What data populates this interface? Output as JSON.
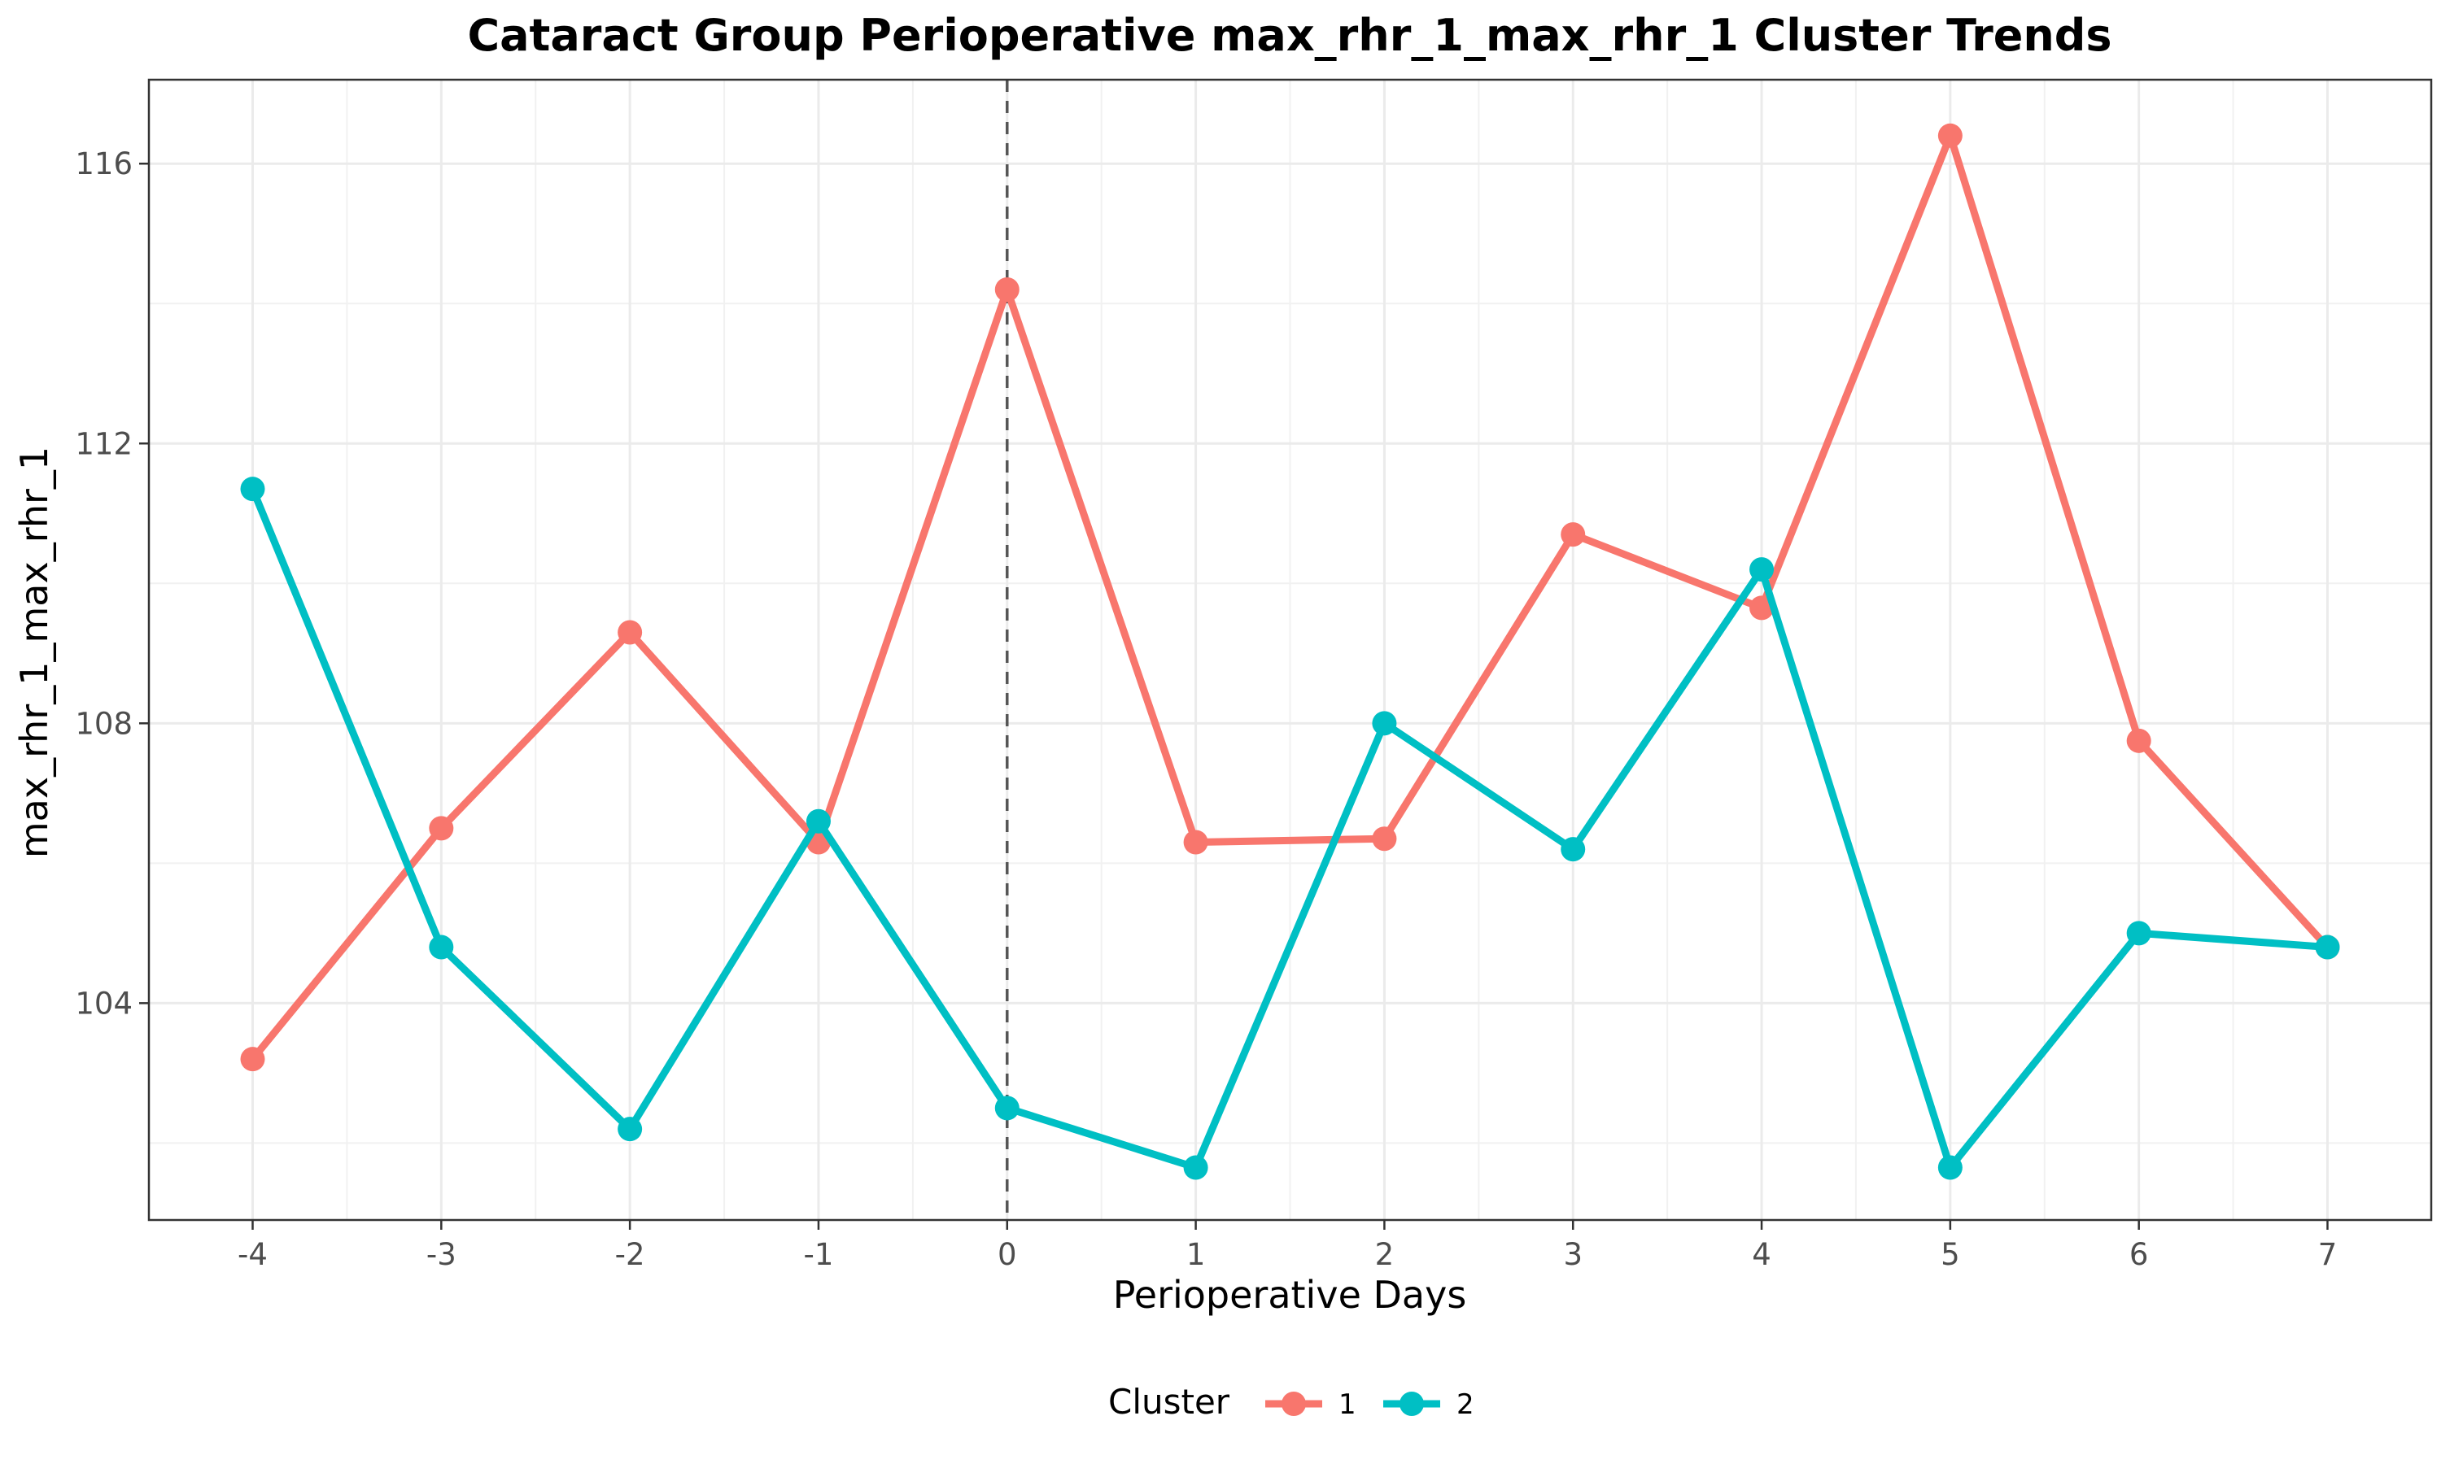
{
  "chart_data": {
    "type": "line",
    "title": "Cataract Group Perioperative max_rhr_1_max_rhr_1 Cluster Trends",
    "xlabel": "Perioperative Days",
    "ylabel": "max_rhr_1_max_rhr_1",
    "x": [
      -4,
      -3,
      -2,
      -1,
      0,
      1,
      2,
      3,
      4,
      5,
      6,
      7
    ],
    "x_tick_labels": [
      "-4",
      "-3",
      "-2",
      "-1",
      "0",
      "1",
      "2",
      "3",
      "4",
      "5",
      "6",
      "7"
    ],
    "y_ticks": [
      104,
      108,
      112,
      116
    ],
    "y_tick_labels": [
      "104",
      "108",
      "112",
      "116"
    ],
    "xlim": [
      -4.55,
      7.55
    ],
    "ylim": [
      100.9,
      117.2
    ],
    "grid": true,
    "reference_line": {
      "x": 0,
      "style": "dashed"
    },
    "legend": {
      "title": "Cluster",
      "position": "bottom"
    },
    "series": [
      {
        "name": "1",
        "color": "#F8766D",
        "values": [
          103.2,
          106.5,
          109.3,
          106.3,
          114.2,
          106.3,
          106.35,
          110.7,
          109.65,
          116.4,
          107.75,
          104.8
        ]
      },
      {
        "name": "2",
        "color": "#00BFC4",
        "values": [
          111.35,
          104.8,
          102.2,
          106.6,
          102.5,
          101.65,
          108.0,
          106.2,
          110.2,
          101.65,
          105.0,
          104.8
        ]
      }
    ]
  }
}
